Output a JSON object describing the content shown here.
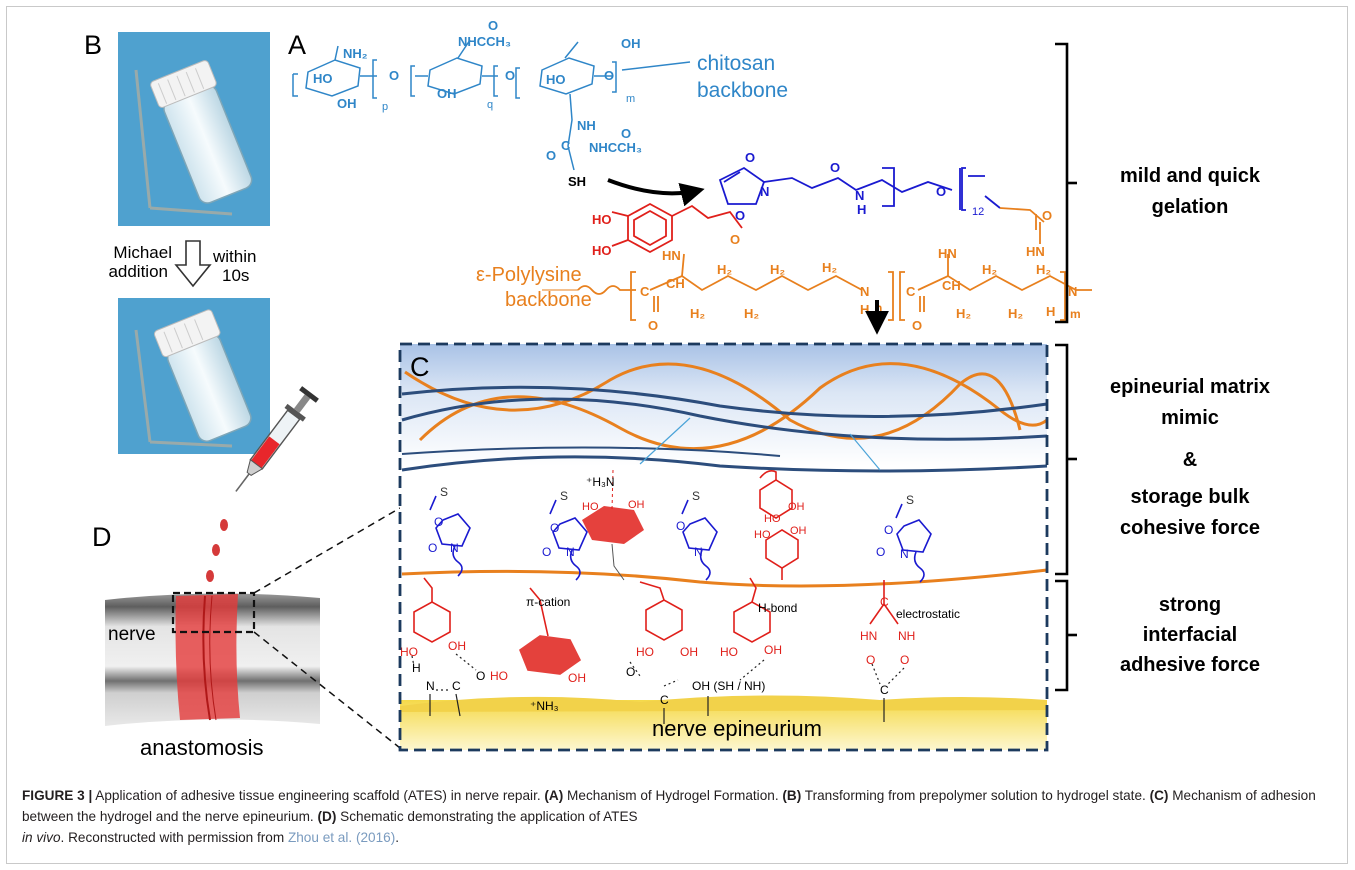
{
  "panels": {
    "a": "A",
    "b": "B",
    "c": "C",
    "d": "D"
  },
  "panel_a": {
    "chitosan_label_1": "chitosan",
    "chitosan_label_2": "backbone",
    "polylysine_label_1": "ε-Polylysine",
    "polylysine_label_2": "backbone",
    "sub_p": "p",
    "sub_q": "q",
    "sub_m": "m",
    "sub_n": "n",
    "sub_12": "12",
    "groups": {
      "nh2": "NH₂",
      "ho": "HO",
      "oh": "OH",
      "o": "O",
      "nhccch3": "NHCCH₃",
      "nh": "NH",
      "sh": "SH",
      "c": "C",
      "n": "N",
      "h": "H",
      "h2": "H₂",
      "hn": "HN",
      "ch": "CH"
    }
  },
  "panel_b": {
    "michael_1": "Michael",
    "michael_2": "addition",
    "within_1": "within",
    "within_2": "10s"
  },
  "panel_c": {
    "s": "S",
    "h3n": "⁺H₃N",
    "nh3": "⁺NH₃",
    "pi_cation": "π-cation",
    "h_bond": "H-bond",
    "electrostatic": "electrostatic",
    "oh_sh_nh": "OH (SH / NH)",
    "epineurium": "nerve epineurium",
    "h": "H",
    "n": "N",
    "c": "C",
    "o": "O",
    "hn": "HN",
    "nh": "NH"
  },
  "panel_d": {
    "nerve": "nerve",
    "anastomosis": "anastomosis"
  },
  "right_labels": {
    "mild_1": "mild and quick",
    "mild_2": "gelation",
    "epi_1": "epineurial matrix",
    "epi_2": "mimic",
    "amp": "&",
    "storage_1": "storage bulk",
    "storage_2": "cohesive force",
    "strong_1": "strong",
    "strong_2": "interfacial",
    "strong_3": "adhesive force"
  },
  "caption": {
    "fig": "FIGURE 3 |",
    "t1": " Application of adhesive tissue engineering scaffold (ATES) in nerve repair. ",
    "a": "(A)",
    "ta": " Mechanism of Hydrogel Formation. ",
    "b": "(B)",
    "tb": " Transforming from prepolymer solution to hydrogel state. ",
    "c": "(C)",
    "tc": " Mechanism of adhesion between the hydrogel and the nerve epineurium. ",
    "d": "(D)",
    "td": " Schematic demonstrating the application of ATES ",
    "invivo": "in vivo",
    "te": ". Reconstructed with permission from ",
    "cite": "Zhou et al. (2016)",
    "end": "."
  },
  "colors": {
    "chitosan": "#2f86c8",
    "linker": "#1a1ad0",
    "polylysine": "#e8801e",
    "catechol": "#e0201b",
    "navy": "#2c4d7c"
  }
}
